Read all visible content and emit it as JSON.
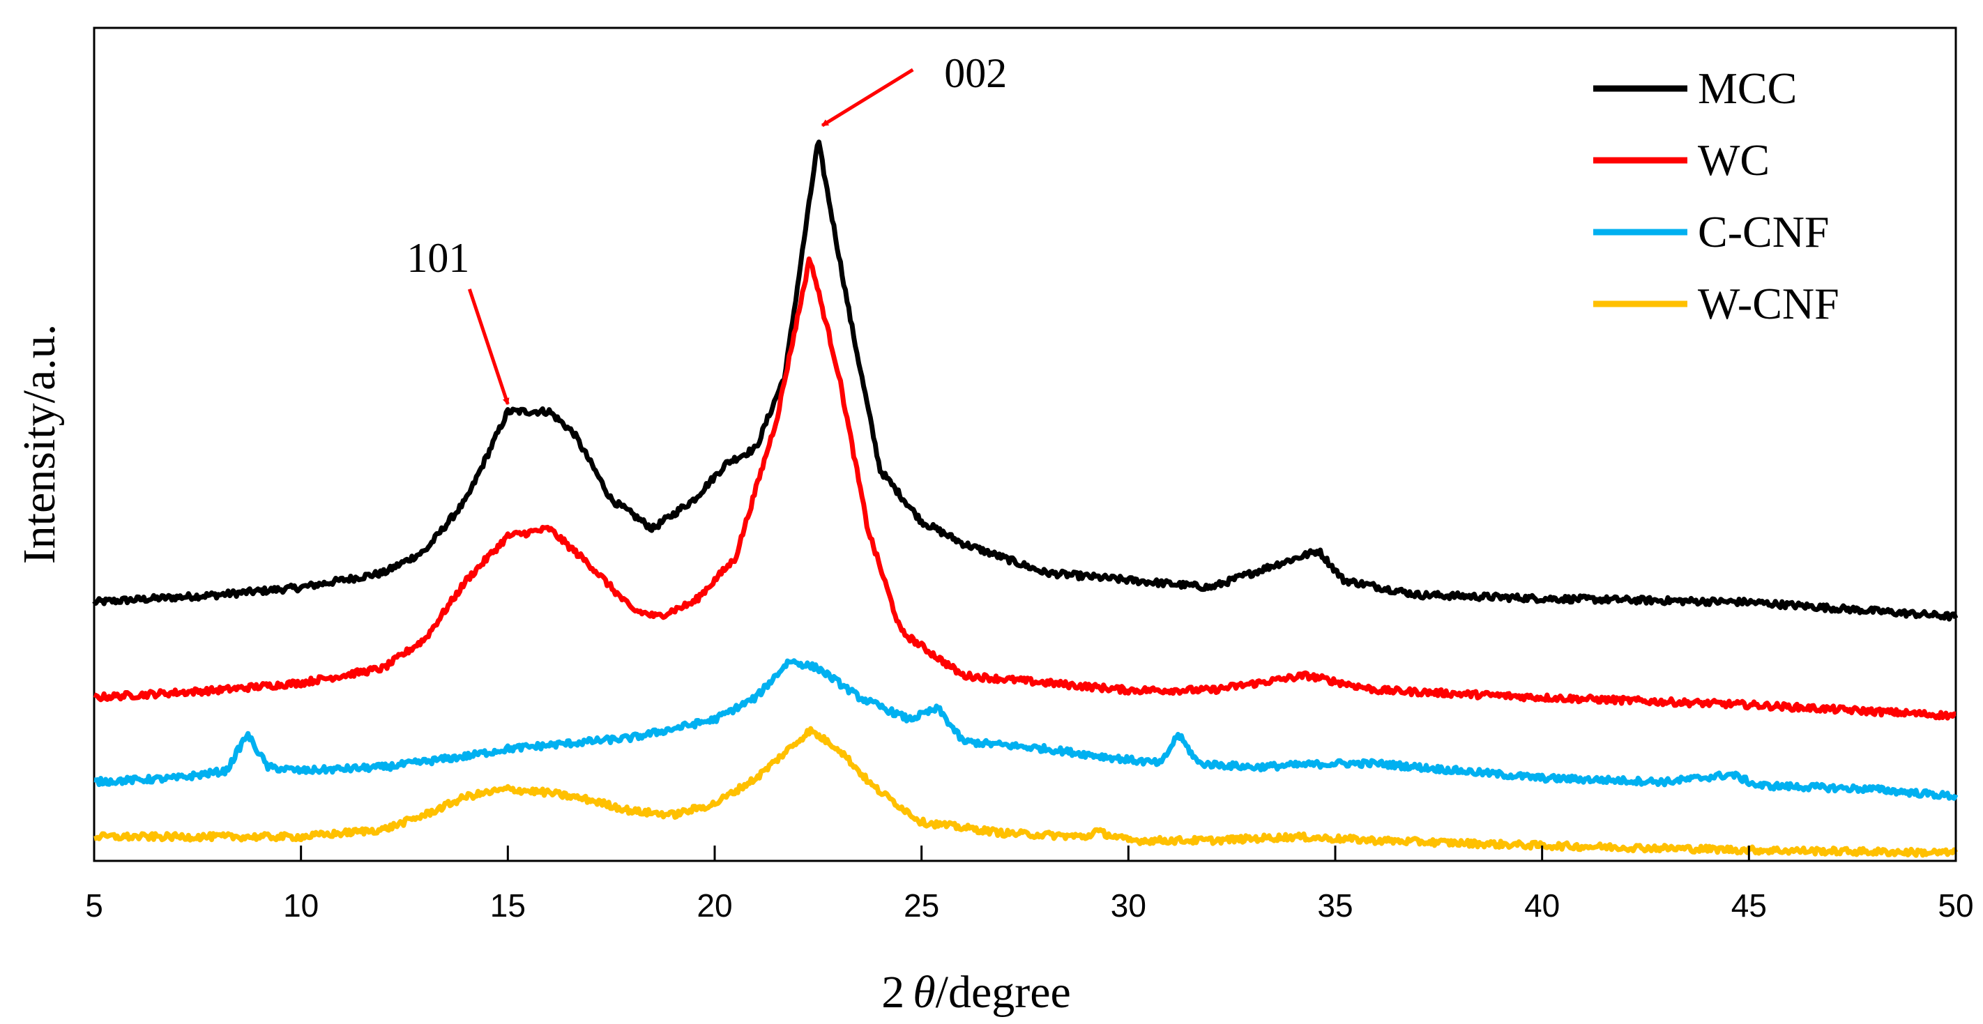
{
  "chart_data": {
    "type": "line",
    "title": "",
    "xlabel_prefix": "2",
    "xlabel_symbol": "θ",
    "xlabel_suffix": "/degree",
    "ylabel": "Intensity/a.u.",
    "xlim": [
      5,
      50
    ],
    "ylim": [
      0,
      100
    ],
    "x_ticks": [
      5,
      10,
      15,
      20,
      25,
      30,
      35,
      40,
      45,
      50
    ],
    "grid": false,
    "legend_position": "top-right",
    "series": [
      {
        "name": "MCC",
        "color": "#000000",
        "points": [
          [
            5,
            35
          ],
          [
            8,
            36
          ],
          [
            10,
            37
          ],
          [
            12,
            39
          ],
          [
            13,
            42
          ],
          [
            14,
            49
          ],
          [
            15,
            61
          ],
          [
            16,
            61
          ],
          [
            16.6,
            58
          ],
          [
            17.5,
            49
          ],
          [
            18.5,
            45
          ],
          [
            19.5,
            49
          ],
          [
            20.3,
            54
          ],
          [
            21,
            56
          ],
          [
            21.7,
            66
          ],
          [
            22.5,
            98
          ],
          [
            23.3,
            73
          ],
          [
            24,
            53
          ],
          [
            25,
            46
          ],
          [
            26,
            43
          ],
          [
            28,
            39
          ],
          [
            30,
            38
          ],
          [
            32,
            37
          ],
          [
            33.5,
            40
          ],
          [
            34.6,
            42
          ],
          [
            35.2,
            38
          ],
          [
            37,
            36
          ],
          [
            40,
            35.5
          ],
          [
            45,
            35
          ],
          [
            50,
            33
          ]
        ]
      },
      {
        "name": "WC",
        "color": "#ff0000",
        "points": [
          [
            5,
            22
          ],
          [
            8,
            23
          ],
          [
            10,
            24
          ],
          [
            12,
            26
          ],
          [
            13,
            30
          ],
          [
            14,
            38
          ],
          [
            15,
            44
          ],
          [
            16,
            45
          ],
          [
            17,
            40
          ],
          [
            18,
            34
          ],
          [
            18.6,
            33
          ],
          [
            19.5,
            35
          ],
          [
            20.5,
            41
          ],
          [
            21.5,
            60
          ],
          [
            22.3,
            82
          ],
          [
            23,
            66
          ],
          [
            23.7,
            45
          ],
          [
            24.5,
            31
          ],
          [
            26,
            25
          ],
          [
            28,
            24
          ],
          [
            30,
            23
          ],
          [
            32,
            23
          ],
          [
            34.3,
            25
          ],
          [
            36,
            23
          ],
          [
            40,
            22
          ],
          [
            45,
            21
          ],
          [
            50,
            19.5
          ]
        ]
      },
      {
        "name": "C-CNF",
        "color": "#00b0f0",
        "points": [
          [
            5,
            10.5
          ],
          [
            7,
            11
          ],
          [
            8.2,
            12
          ],
          [
            8.7,
            17
          ],
          [
            9.2,
            12.5
          ],
          [
            10,
            12
          ],
          [
            12,
            12.5
          ],
          [
            14,
            14
          ],
          [
            15,
            15
          ],
          [
            18,
            16.5
          ],
          [
            20,
            19
          ],
          [
            21,
            22
          ],
          [
            21.8,
            27
          ],
          [
            22.5,
            26
          ],
          [
            23.5,
            22
          ],
          [
            24.7,
            19
          ],
          [
            25.4,
            20.5
          ],
          [
            26,
            16
          ],
          [
            28,
            15
          ],
          [
            30,
            13.5
          ],
          [
            30.8,
            13
          ],
          [
            31.2,
            17
          ],
          [
            31.7,
            13
          ],
          [
            33,
            12.5
          ],
          [
            35,
            13
          ],
          [
            36,
            13
          ],
          [
            38,
            12
          ],
          [
            40,
            11
          ],
          [
            43,
            10.5
          ],
          [
            44.6,
            11.5
          ],
          [
            45.2,
            10
          ],
          [
            48,
            9.5
          ],
          [
            50,
            8.5
          ]
        ]
      },
      {
        "name": "W-CNF",
        "color": "#ffc000",
        "points": [
          [
            5,
            3
          ],
          [
            8,
            3
          ],
          [
            10,
            3
          ],
          [
            12,
            4
          ],
          [
            13,
            6
          ],
          [
            14,
            8.5
          ],
          [
            15,
            9.5
          ],
          [
            16,
            9
          ],
          [
            17,
            8
          ],
          [
            18,
            6.5
          ],
          [
            19,
            6
          ],
          [
            20,
            7.5
          ],
          [
            21,
            11
          ],
          [
            22,
            16
          ],
          [
            22.3,
            17.5
          ],
          [
            23,
            15
          ],
          [
            23.8,
            10
          ],
          [
            25,
            5
          ],
          [
            27,
            3.5
          ],
          [
            29,
            3
          ],
          [
            29.2,
            3.8
          ],
          [
            30,
            2.5
          ],
          [
            32,
            2.5
          ],
          [
            34,
            3
          ],
          [
            36,
            2.5
          ],
          [
            40,
            1.8
          ],
          [
            45,
            1.2
          ],
          [
            50,
            0.8
          ]
        ]
      }
    ],
    "annotations": [
      {
        "label": "101",
        "arrow_to": [
          15,
          62
        ]
      },
      {
        "label": "002",
        "arrow_to": [
          22.6,
          100
        ]
      }
    ]
  }
}
